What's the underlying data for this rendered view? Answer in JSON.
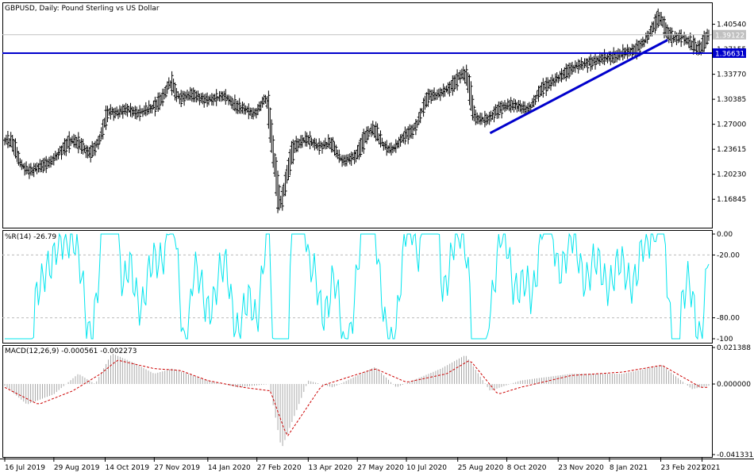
{
  "chart_data": [
    {
      "type": "candlestick",
      "title": "GBPUSD, Daily:  Pound Sterling vs US Dollar",
      "ylim": [
        1.13,
        1.435
      ],
      "y_ticks": [
        "1.40540",
        "1.37155",
        "1.33770",
        "1.30385",
        "1.27000",
        "1.23615",
        "1.20230",
        "1.16845"
      ],
      "current_price_label": "1.39122",
      "current_price": 1.39122,
      "horizontal_line_label": "1.36631",
      "horizontal_line": 1.36631,
      "trendline": {
        "from": [
          "2020-09-23",
          1.258
        ],
        "to": [
          "2021-03-01",
          1.384
        ]
      },
      "close_path": [
        [
          "2019-07-16",
          1.25
        ],
        [
          "2019-07-25",
          1.245
        ],
        [
          "2019-08-01",
          1.215
        ],
        [
          "2019-08-10",
          1.205
        ],
        [
          "2019-08-20",
          1.215
        ],
        [
          "2019-08-29",
          1.22
        ],
        [
          "2019-09-05",
          1.232
        ],
        [
          "2019-09-15",
          1.25
        ],
        [
          "2019-09-25",
          1.24
        ],
        [
          "2019-10-01",
          1.23
        ],
        [
          "2019-10-10",
          1.245
        ],
        [
          "2019-10-14",
          1.265
        ],
        [
          "2019-10-18",
          1.29
        ],
        [
          "2019-10-25",
          1.285
        ],
        [
          "2019-11-05",
          1.29
        ],
        [
          "2019-11-15",
          1.285
        ],
        [
          "2019-11-27",
          1.292
        ],
        [
          "2019-12-08",
          1.31
        ],
        [
          "2019-12-13",
          1.33
        ],
        [
          "2019-12-20",
          1.305
        ],
        [
          "2019-12-31",
          1.31
        ],
        [
          "2020-01-10",
          1.305
        ],
        [
          "2020-01-20",
          1.303
        ],
        [
          "2020-01-31",
          1.31
        ],
        [
          "2020-02-10",
          1.293
        ],
        [
          "2020-02-20",
          1.29
        ],
        [
          "2020-02-27",
          1.283
        ],
        [
          "2020-03-05",
          1.3
        ],
        [
          "2020-03-09",
          1.31
        ],
        [
          "2020-03-13",
          1.245
        ],
        [
          "2020-03-17",
          1.2
        ],
        [
          "2020-03-20",
          1.15
        ],
        [
          "2020-03-25",
          1.19
        ],
        [
          "2020-04-01",
          1.24
        ],
        [
          "2020-04-13",
          1.25
        ],
        [
          "2020-04-25",
          1.24
        ],
        [
          "2020-05-05",
          1.245
        ],
        [
          "2020-05-15",
          1.22
        ],
        [
          "2020-05-27",
          1.225
        ],
        [
          "2020-06-05",
          1.255
        ],
        [
          "2020-06-12",
          1.265
        ],
        [
          "2020-06-22",
          1.24
        ],
        [
          "2020-06-30",
          1.235
        ],
        [
          "2020-07-10",
          1.255
        ],
        [
          "2020-07-20",
          1.265
        ],
        [
          "2020-07-31",
          1.31
        ],
        [
          "2020-08-10",
          1.31
        ],
        [
          "2020-08-20",
          1.32
        ],
        [
          "2020-08-31",
          1.34
        ],
        [
          "2020-09-05",
          1.33
        ],
        [
          "2020-09-10",
          1.28
        ],
        [
          "2020-09-23",
          1.275
        ],
        [
          "2020-10-01",
          1.29
        ],
        [
          "2020-10-08",
          1.295
        ],
        [
          "2020-10-20",
          1.295
        ],
        [
          "2020-10-30",
          1.29
        ],
        [
          "2020-11-10",
          1.32
        ],
        [
          "2020-11-23",
          1.33
        ],
        [
          "2020-12-05",
          1.345
        ],
        [
          "2020-12-15",
          1.35
        ],
        [
          "2020-12-25",
          1.355
        ],
        [
          "2021-01-08",
          1.36
        ],
        [
          "2021-01-20",
          1.365
        ],
        [
          "2021-02-01",
          1.37
        ],
        [
          "2021-02-12",
          1.385
        ],
        [
          "2021-02-24",
          1.42
        ],
        [
          "2021-03-01",
          1.395
        ],
        [
          "2021-03-08",
          1.385
        ],
        [
          "2021-03-15",
          1.39
        ],
        [
          "2021-03-23",
          1.38
        ],
        [
          "2021-03-31",
          1.37
        ],
        [
          "2021-04-07",
          1.39
        ]
      ]
    },
    {
      "type": "line",
      "title": "%R(14) -26.79",
      "ylim": [
        -100,
        0
      ],
      "y_ticks": [
        "0.00",
        "-20.00",
        "-80.00",
        "-100"
      ],
      "levels": [
        -20,
        -80
      ]
    },
    {
      "type": "histogram-line",
      "title": "MACD(12,26,9) -0.000561 -0.002273",
      "ylim": [
        -0.041331,
        0.021388
      ],
      "y_ticks": [
        "0.021388",
        "0.000000",
        "-0.041331"
      ],
      "macd_path": [
        [
          "2019-07-16",
          -0.001
        ],
        [
          "2019-08-05",
          -0.012
        ],
        [
          "2019-08-29",
          -0.006
        ],
        [
          "2019-09-20",
          0.006
        ],
        [
          "2019-10-05",
          0.0
        ],
        [
          "2019-10-20",
          0.018
        ],
        [
          "2019-11-10",
          0.012
        ],
        [
          "2019-11-27",
          0.006
        ],
        [
          "2019-12-13",
          0.009
        ],
        [
          "2020-01-14",
          0.002
        ],
        [
          "2020-02-10",
          -0.002
        ],
        [
          "2020-03-09",
          0.0
        ],
        [
          "2020-03-20",
          -0.038
        ],
        [
          "2020-04-13",
          0.002
        ],
        [
          "2020-05-05",
          -0.002
        ],
        [
          "2020-06-12",
          0.01
        ],
        [
          "2020-07-01",
          -0.002
        ],
        [
          "2020-08-10",
          0.009
        ],
        [
          "2020-09-01",
          0.017
        ],
        [
          "2020-09-23",
          -0.004
        ],
        [
          "2020-10-20",
          0.002
        ],
        [
          "2020-12-05",
          0.006
        ],
        [
          "2021-01-20",
          0.006
        ],
        [
          "2021-02-24",
          0.011
        ],
        [
          "2021-03-23",
          -0.003
        ],
        [
          "2021-04-07",
          -0.001
        ]
      ],
      "signal_path": [
        [
          "2019-07-16",
          -0.002
        ],
        [
          "2019-08-15",
          -0.012
        ],
        [
          "2019-09-15",
          -0.004
        ],
        [
          "2019-10-10",
          0.006
        ],
        [
          "2019-10-25",
          0.014
        ],
        [
          "2019-11-27",
          0.009
        ],
        [
          "2019-12-20",
          0.008
        ],
        [
          "2020-01-14",
          0.002
        ],
        [
          "2020-02-15",
          -0.002
        ],
        [
          "2020-03-10",
          -0.004
        ],
        [
          "2020-03-25",
          -0.031
        ],
        [
          "2020-04-25",
          -0.001
        ],
        [
          "2020-06-12",
          0.009
        ],
        [
          "2020-07-10",
          0.001
        ],
        [
          "2020-08-15",
          0.006
        ],
        [
          "2020-09-05",
          0.014
        ],
        [
          "2020-09-30",
          -0.006
        ],
        [
          "2020-10-20",
          -0.002
        ],
        [
          "2020-12-05",
          0.005
        ],
        [
          "2021-01-20",
          0.007
        ],
        [
          "2021-02-24",
          0.011
        ],
        [
          "2021-03-31",
          -0.002
        ],
        [
          "2021-04-07",
          -0.002
        ]
      ]
    }
  ],
  "x_ticks": [
    [
      "16 Jul 2019",
      "2019-07-16"
    ],
    [
      "29 Aug 2019",
      "2019-08-29"
    ],
    [
      "14 Oct 2019",
      "2019-10-14"
    ],
    [
      "27 Nov 2019",
      "2019-11-27"
    ],
    [
      "14 Jan 2020",
      "2020-01-14"
    ],
    [
      "27 Feb 2020",
      "2020-02-27"
    ],
    [
      "13 Apr 2020",
      "2020-04-13"
    ],
    [
      "27 May 2020",
      "2020-05-27"
    ],
    [
      "10 Jul 2020",
      "2020-07-10"
    ],
    [
      "25 Aug 2020",
      "2020-08-25"
    ],
    [
      "8 Oct 2020",
      "2020-10-08"
    ],
    [
      "23 Nov 2020",
      "2020-11-23"
    ],
    [
      "8 Jan 2021",
      "2021-01-08"
    ],
    [
      "23 Feb 2021",
      "2021-02-23"
    ],
    [
      "2021",
      "2021-04-01"
    ]
  ],
  "colors": {
    "candles": "#000000",
    "hline": "#0000cc",
    "trendline": "#0000cc",
    "williams": "#00e5ee",
    "macd_hist": "#a8a8a8",
    "macd_signal": "#cc0000",
    "current_price_bg": "#c0c0c0",
    "level_line": "#bbbbbb"
  }
}
